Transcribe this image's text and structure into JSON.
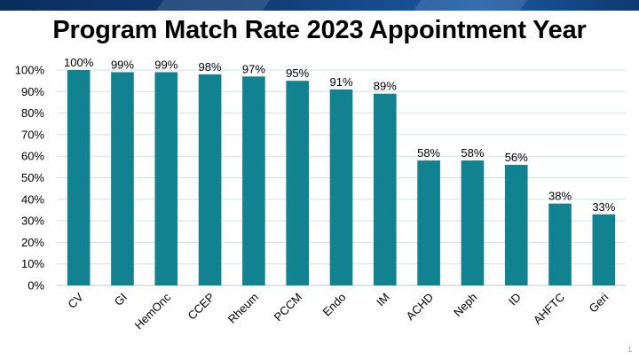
{
  "slide": {
    "title": "Program Match Rate 2023 Appointment Year",
    "number": "1"
  },
  "colors": {
    "bar": "#138290",
    "grid": "#cfe0ea",
    "header_band": "#123f7a"
  },
  "chart_data": {
    "type": "bar",
    "title": "Program Match Rate 2023 Appointment Year",
    "xlabel": "",
    "ylabel": "",
    "categories": [
      "CV",
      "GI",
      "HemOnc",
      "CCEP",
      "Rheum",
      "PCCM",
      "Endo",
      "IM",
      "ACHD",
      "Neph",
      "ID",
      "AHFTC",
      "Geri"
    ],
    "values": [
      100,
      99,
      99,
      98,
      97,
      95,
      91,
      89,
      58,
      58,
      56,
      38,
      33
    ],
    "value_labels": [
      "100%",
      "99%",
      "99%",
      "98%",
      "97%",
      "95%",
      "91%",
      "89%",
      "58%",
      "58%",
      "56%",
      "38%",
      "33%"
    ],
    "ylim": [
      0,
      100
    ],
    "yticks": [
      0,
      10,
      20,
      30,
      40,
      50,
      60,
      70,
      80,
      90,
      100
    ],
    "ytick_labels": [
      "0%",
      "10%",
      "20%",
      "30%",
      "40%",
      "50%",
      "60%",
      "70%",
      "80%",
      "90%",
      "100%"
    ],
    "grid": true,
    "legend": "none"
  }
}
